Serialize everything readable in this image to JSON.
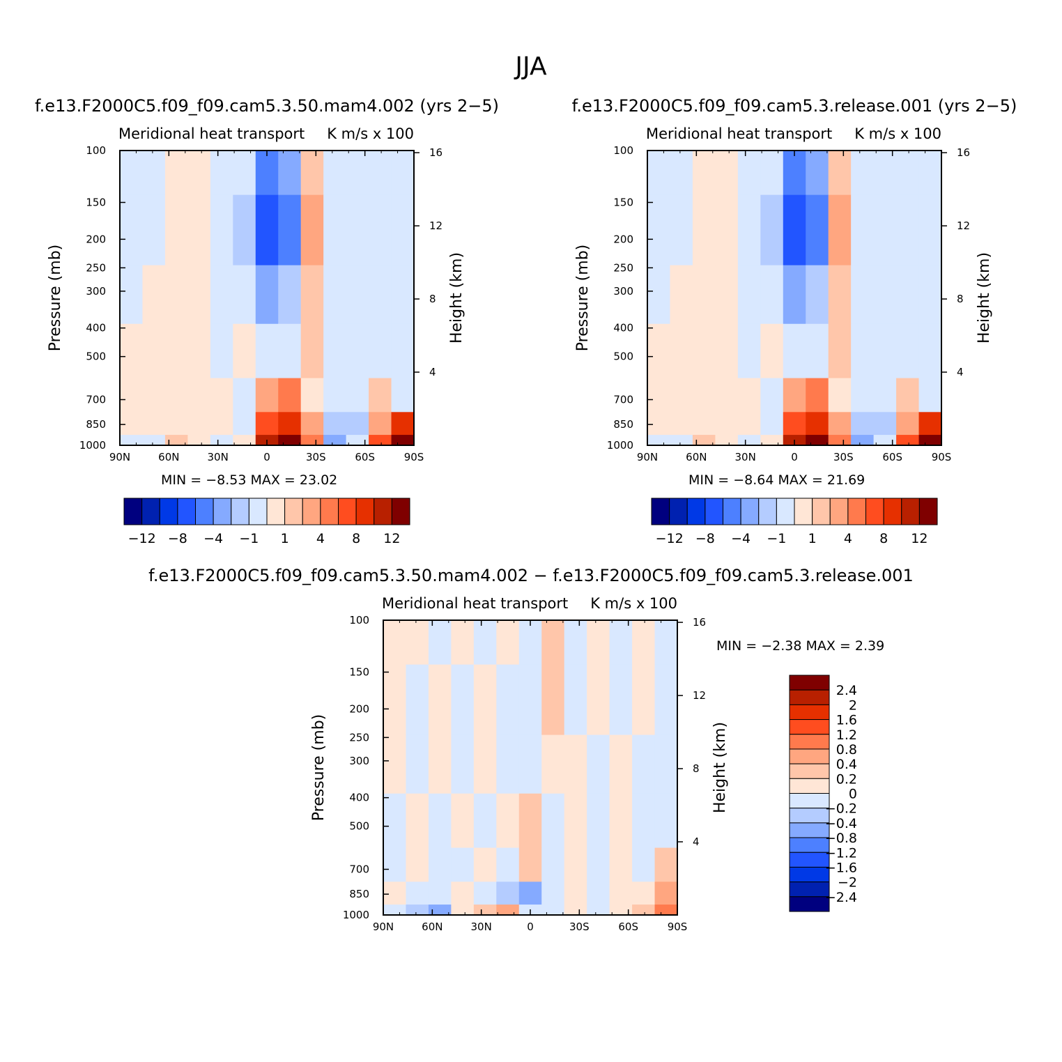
{
  "figure": {
    "title": "JJA"
  },
  "palettes": {
    "main": [
      "#00007f",
      "#0021b0",
      "#0039e6",
      "#2255ff",
      "#4d80ff",
      "#85aaff",
      "#b4ccff",
      "#d9e8ff",
      "#ffe6d6",
      "#ffc6aa",
      "#ffa680",
      "#ff7a4d",
      "#ff4d1f",
      "#e63000",
      "#b82000",
      "#7f0000"
    ],
    "diff": [
      "#00007f",
      "#0021b0",
      "#0039e6",
      "#2255ff",
      "#4d80ff",
      "#85aaff",
      "#b4ccff",
      "#d9e8ff",
      "#ffe6d6",
      "#ffc6aa",
      "#ffa680",
      "#ff7a4d",
      "#ff4d1f",
      "#e63000",
      "#b82000",
      "#7f0000"
    ]
  },
  "panels": [
    {
      "case_title": "f.e13.F2000C5.f09_f09.cam5.3.50.mam4.002 (yrs 2−5)",
      "variable": "Meridional heat transport",
      "units": "K m/s x 100",
      "y_label": "Pressure (mb)",
      "y2_label": "Height (km)",
      "stats_text": "MIN =   −8.53   MAX =   23.02",
      "colorbar_labels": [
        "−12",
        "−8",
        "−4",
        "−1",
        "1",
        "4",
        "8",
        "12"
      ]
    },
    {
      "case_title": "f.e13.F2000C5.f09_f09.cam5.3.release.001 (yrs 2−5)",
      "variable": "Meridional heat transport",
      "units": "K m/s x 100",
      "y_label": "Pressure (mb)",
      "y2_label": "Height (km)",
      "stats_text": "MIN =   −8.64   MAX =   21.69",
      "colorbar_labels": [
        "−12",
        "−8",
        "−4",
        "−1",
        "1",
        "4",
        "8",
        "12"
      ]
    },
    {
      "case_title": "f.e13.F2000C5.f09_f09.cam5.3.50.mam4.002 − f.e13.F2000C5.f09_f09.cam5.3.release.001",
      "variable": "Meridional heat transport",
      "units": "K m/s x 100",
      "y_label": "Pressure (mb)",
      "y2_label": "Height (km)",
      "stats_text": "MIN =   −2.38   MAX =    2.39",
      "colorbar_labels": [
        "2.4",
        "2",
        "1.6",
        "1.2",
        "0.8",
        "0.4",
        "0.2",
        "0",
        "−0.2",
        "−0.4",
        "−0.8",
        "−1.2",
        "−1.6",
        "−2",
        "−2.4"
      ]
    }
  ],
  "chart_data": [
    {
      "type": "heatmap",
      "title": "Meridional heat transport",
      "units": "K m/s x 100",
      "x_ticks": [
        "90N",
        "60N",
        "30N",
        "0",
        "30S",
        "60S",
        "90S"
      ],
      "y_ticks": [
        "100",
        "150",
        "200",
        "250",
        "300",
        "400",
        "500",
        "700",
        "850",
        "1000"
      ],
      "y2_ticks": [
        "16",
        "12",
        "8",
        "4"
      ],
      "min": -8.53,
      "max": 23.02,
      "x": [
        90,
        75,
        60,
        45,
        30,
        15,
        0,
        -15,
        -30,
        -45,
        -60,
        -75,
        -90
      ],
      "y": [
        100,
        200,
        300,
        500,
        700,
        850,
        1000
      ],
      "values": [
        [
          -1,
          -1,
          0.5,
          0.5,
          -1,
          -1,
          -6,
          -4,
          1,
          -1,
          -1,
          -1,
          -1
        ],
        [
          -1,
          -0.5,
          0.5,
          0.5,
          -1,
          -2,
          -8,
          -5,
          3,
          -1,
          -1,
          -1,
          -1
        ],
        [
          -1,
          0.5,
          0.5,
          0.5,
          -1,
          -1,
          -4,
          -2,
          1,
          -1,
          -1,
          -1,
          -1
        ],
        [
          0.5,
          0.5,
          0.5,
          0.5,
          -1,
          0.5,
          -1,
          -1,
          1,
          -1,
          -1,
          -1,
          -1
        ],
        [
          0.5,
          0.5,
          0.5,
          0.5,
          0.5,
          -1,
          2,
          4,
          0.5,
          -1,
          -1,
          1,
          -1
        ],
        [
          0.5,
          0.5,
          0.5,
          0.5,
          0.5,
          -1,
          6,
          8,
          3,
          -2,
          -2,
          2,
          8
        ],
        [
          -1,
          -1,
          1,
          0.5,
          -1,
          0.5,
          10,
          16,
          5,
          -4,
          -1,
          6,
          12
        ]
      ]
    },
    {
      "type": "heatmap",
      "title": "Meridional heat transport",
      "units": "K m/s x 100",
      "x_ticks": [
        "90N",
        "60N",
        "30N",
        "0",
        "30S",
        "60S",
        "90S"
      ],
      "y_ticks": [
        "100",
        "150",
        "200",
        "250",
        "300",
        "400",
        "500",
        "700",
        "850",
        "1000"
      ],
      "y2_ticks": [
        "16",
        "12",
        "8",
        "4"
      ],
      "min": -8.64,
      "max": 21.69,
      "x": [
        90,
        75,
        60,
        45,
        30,
        15,
        0,
        -15,
        -30,
        -45,
        -60,
        -75,
        -90
      ],
      "y": [
        100,
        200,
        300,
        500,
        700,
        850,
        1000
      ],
      "values": [
        [
          -1,
          -1,
          0.5,
          0.5,
          -1,
          -1,
          -6,
          -4,
          1,
          -1,
          -1,
          -1,
          -1
        ],
        [
          -1,
          -0.5,
          0.5,
          0.5,
          -1,
          -2,
          -8,
          -5,
          3,
          -1,
          -1,
          -1,
          -1
        ],
        [
          -1,
          0.5,
          0.5,
          0.5,
          -1,
          -1,
          -4,
          -2,
          1,
          -1,
          -1,
          -1,
          -1
        ],
        [
          0.5,
          0.5,
          0.5,
          0.5,
          -1,
          0.5,
          -1,
          -1,
          1,
          -1,
          -1,
          -1,
          -1
        ],
        [
          0.5,
          0.5,
          0.5,
          0.5,
          0.5,
          -1,
          2,
          4,
          0.5,
          -1,
          -1,
          1,
          -1
        ],
        [
          0.5,
          0.5,
          0.5,
          0.5,
          0.5,
          -1,
          6,
          8,
          3,
          -2,
          -2,
          2,
          8
        ],
        [
          -1,
          -1,
          1,
          0.5,
          -1,
          0.5,
          10,
          15,
          5,
          -4,
          -1,
          6,
          12
        ]
      ]
    },
    {
      "type": "heatmap",
      "title": "Meridional heat transport",
      "units": "K m/s x 100",
      "x_ticks": [
        "90N",
        "60N",
        "30N",
        "0",
        "30S",
        "60S",
        "90S"
      ],
      "y_ticks": [
        "100",
        "150",
        "200",
        "250",
        "300",
        "400",
        "500",
        "700",
        "850",
        "1000"
      ],
      "y2_ticks": [
        "16",
        "12",
        "8",
        "4"
      ],
      "min": -2.38,
      "max": 2.39,
      "x": [
        90,
        75,
        60,
        45,
        30,
        15,
        0,
        -15,
        -30,
        -45,
        -60,
        -75,
        -90
      ],
      "y": [
        100,
        200,
        300,
        500,
        700,
        850,
        1000
      ],
      "values": [
        [
          0.1,
          0.1,
          -0.1,
          0.1,
          -0.1,
          0.1,
          -0.1,
          0.3,
          -0.1,
          0.1,
          -0.1,
          0.1,
          -0.1
        ],
        [
          0.1,
          -0.1,
          0.1,
          -0.1,
          0.1,
          -0.1,
          -0.1,
          0.3,
          -0.1,
          0.1,
          -0.1,
          0.1,
          -0.1
        ],
        [
          0.1,
          -0.1,
          0.1,
          -0.1,
          0.1,
          -0.1,
          -0.1,
          0.1,
          0.1,
          -0.1,
          0.1,
          -0.1,
          -0.1
        ],
        [
          -0.1,
          0.1,
          -0.1,
          0.1,
          -0.1,
          0.1,
          0.3,
          -0.1,
          0.1,
          -0.1,
          0.1,
          -0.1,
          -0.1
        ],
        [
          -0.1,
          0.1,
          -0.1,
          -0.1,
          0.1,
          -0.1,
          0.3,
          -0.1,
          0.1,
          -0.1,
          0.1,
          -0.1,
          0.3
        ],
        [
          0.1,
          -0.1,
          -0.1,
          0.1,
          -0.1,
          -0.3,
          -0.6,
          -0.1,
          0.1,
          -0.1,
          0.1,
          0.1,
          0.6
        ],
        [
          -0.1,
          -0.3,
          -0.6,
          0.1,
          0.3,
          0.6,
          -0.1,
          -0.1,
          0.1,
          -0.1,
          0.1,
          0.3,
          0.9
        ]
      ]
    }
  ]
}
